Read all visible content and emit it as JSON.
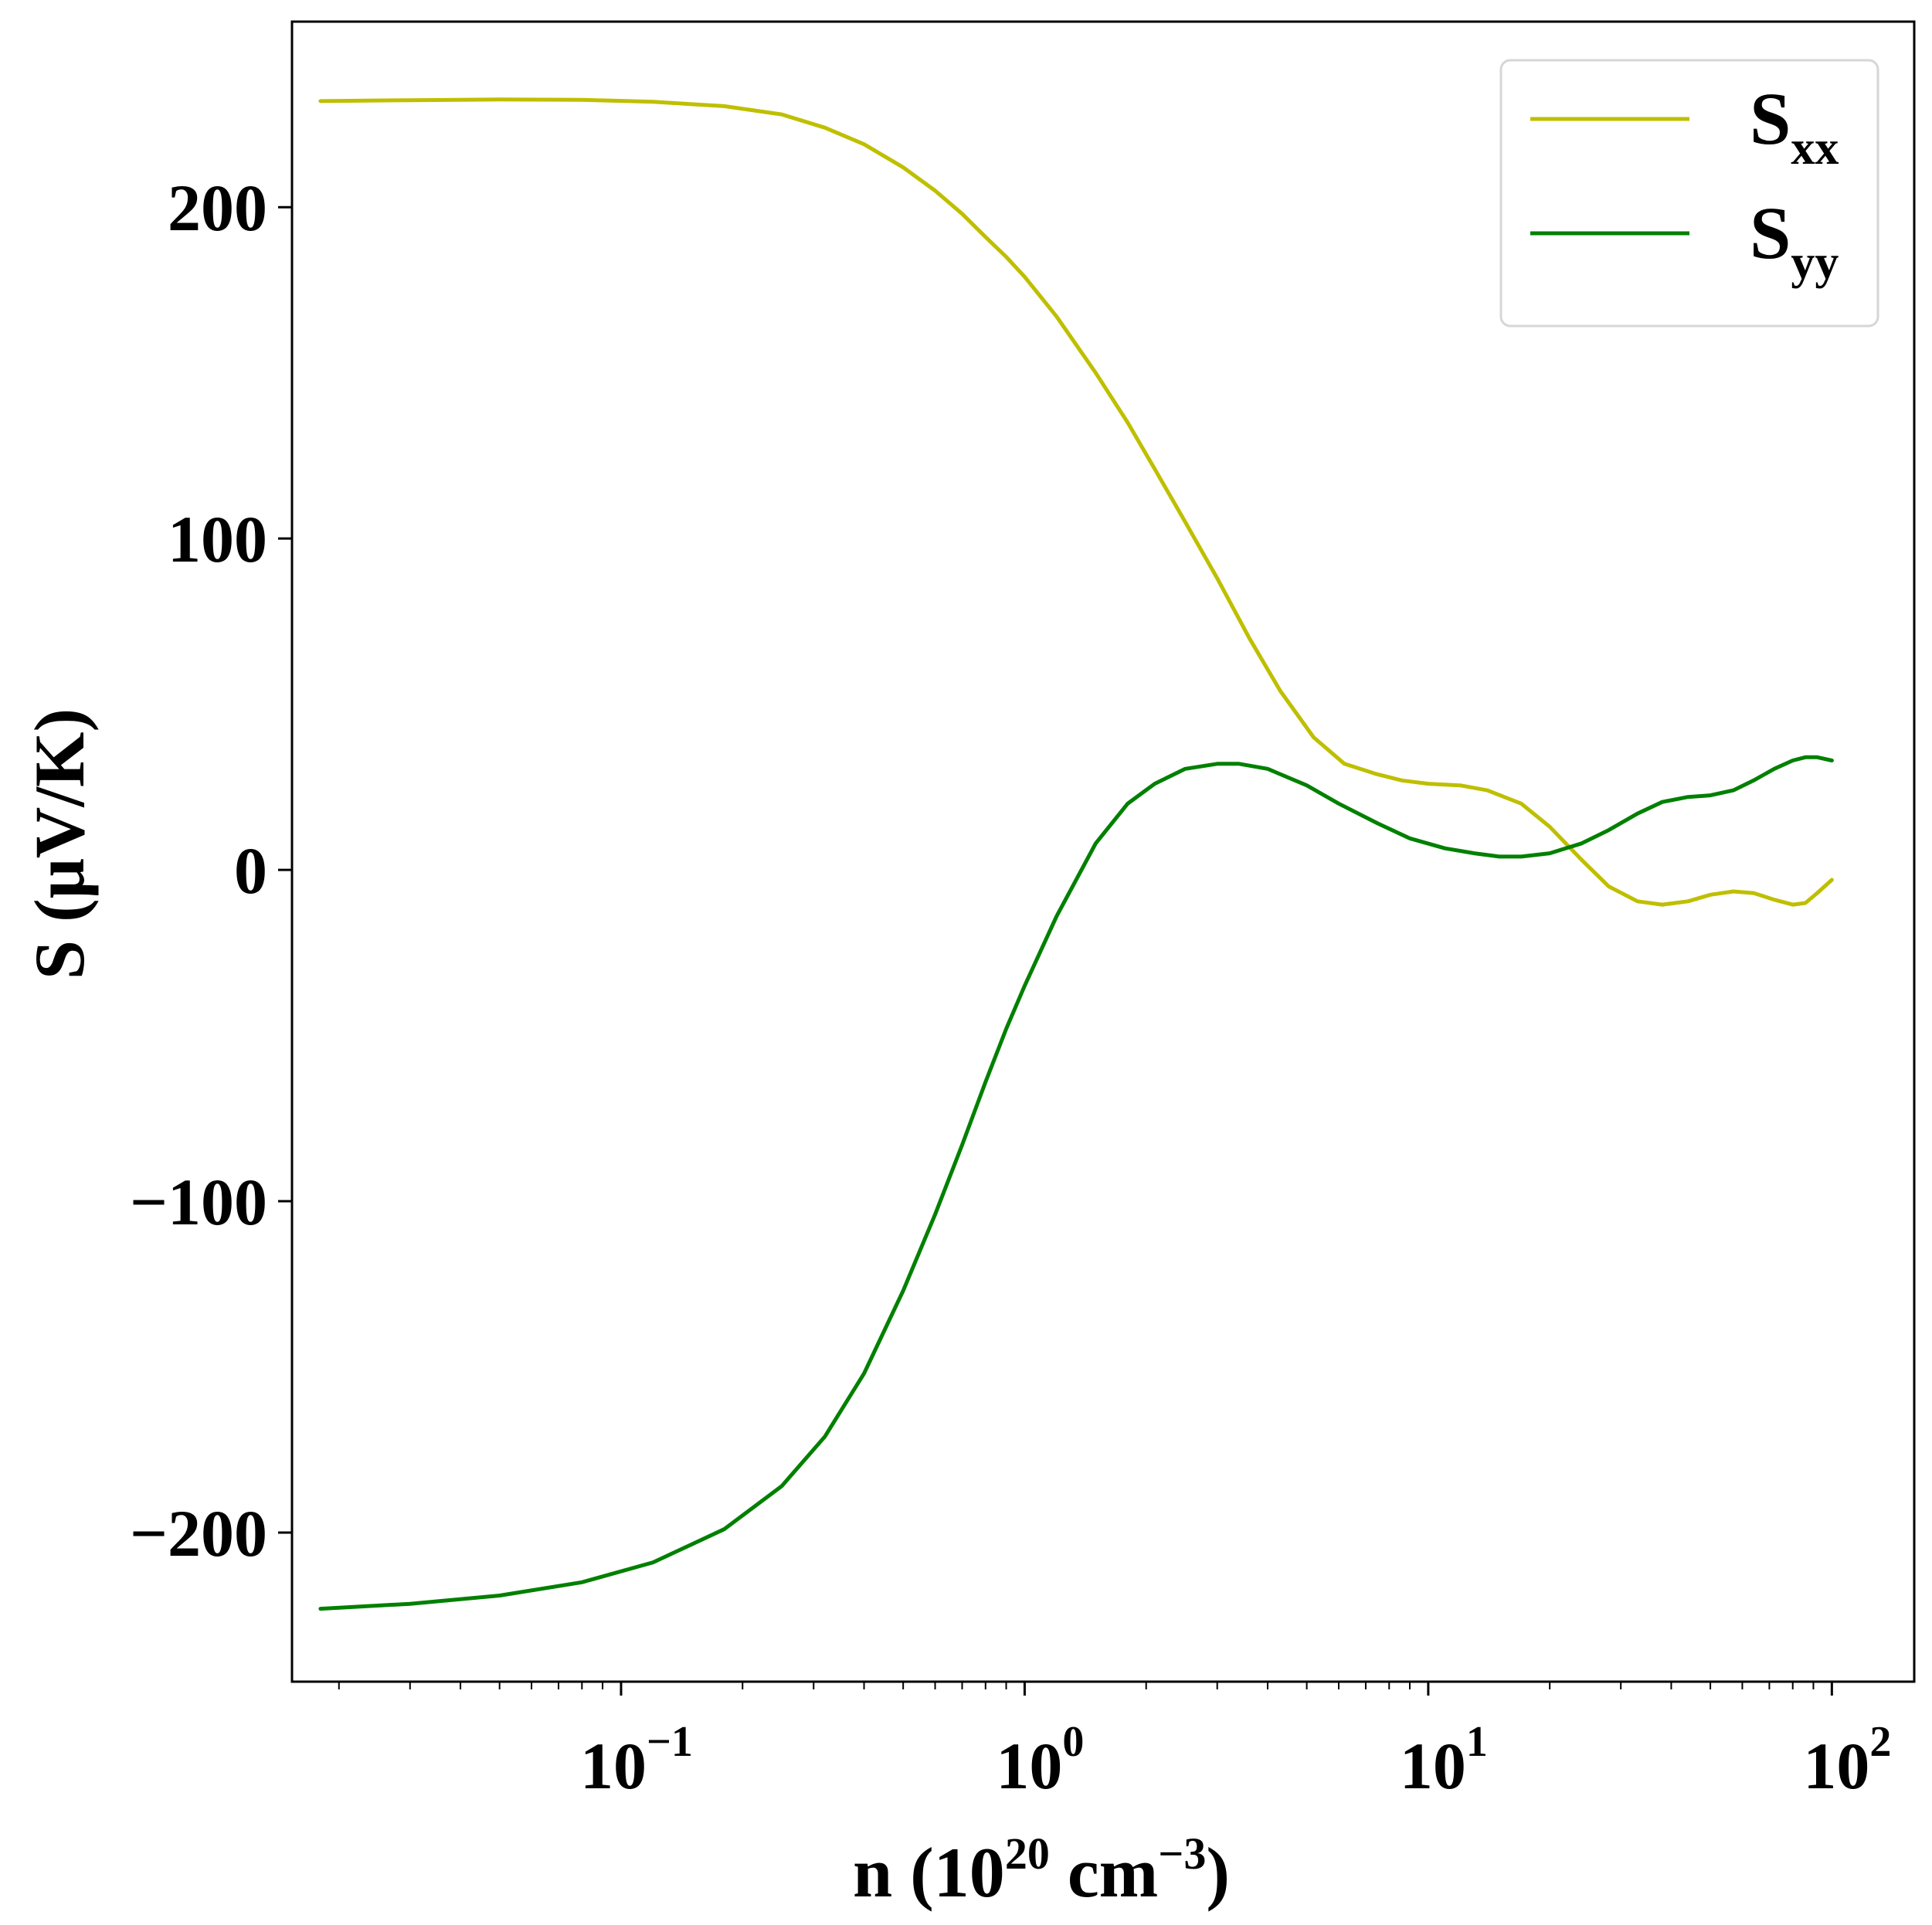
{
  "chart_data": {
    "type": "line",
    "xscale": "log",
    "xlim": [
      0.0153,
      160
    ],
    "ylim": [
      -245,
      256
    ],
    "xlabel": {
      "prefix": "n (10",
      "sup": "20",
      "mid": " cm",
      "sup2": "−3",
      "suffix": ")"
    },
    "ylabel": "S (μV/K)",
    "xticks": [
      {
        "value": 0.1,
        "base": "10",
        "exp": "−1"
      },
      {
        "value": 1,
        "base": "10",
        "exp": "0"
      },
      {
        "value": 10,
        "base": "10",
        "exp": "1"
      },
      {
        "value": 100,
        "base": "10",
        "exp": "2"
      }
    ],
    "yticks": [
      {
        "value": -200,
        "label": "−200"
      },
      {
        "value": -100,
        "label": "−100"
      },
      {
        "value": 0,
        "label": "0"
      },
      {
        "value": 100,
        "label": "100"
      },
      {
        "value": 200,
        "label": "200"
      }
    ],
    "grid": false,
    "legend_position": "top-right",
    "series": [
      {
        "name": "S",
        "sub": "xx",
        "color": "#bfbf00",
        "x": [
          0.018,
          0.03,
          0.05,
          0.08,
          0.12,
          0.18,
          0.25,
          0.32,
          0.4,
          0.5,
          0.6,
          0.7,
          0.8,
          0.9,
          1.0,
          1.2,
          1.5,
          1.8,
          2.1,
          2.5,
          3.0,
          3.6,
          4.3,
          5.2,
          6.2,
          7.4,
          8.6,
          10,
          12,
          14,
          17,
          20,
          24,
          28,
          33,
          38,
          44,
          50,
          57,
          64,
          72,
          80,
          86,
          92,
          100
        ],
        "y": [
          232,
          232.3,
          232.5,
          232.4,
          231.8,
          230.5,
          228,
          224,
          219,
          212,
          205,
          198,
          191,
          185,
          179,
          167,
          150,
          135,
          121,
          105,
          88,
          70,
          54,
          40,
          32,
          29,
          27,
          26,
          25.5,
          24,
          20,
          13,
          3,
          -5,
          -9.5,
          -10.5,
          -9.5,
          -7.5,
          -6.5,
          -7,
          -9,
          -10.5,
          -10,
          -7,
          -3
        ]
      },
      {
        "name": "S",
        "sub": "yy",
        "color": "#008000",
        "x": [
          0.018,
          0.03,
          0.05,
          0.08,
          0.12,
          0.18,
          0.25,
          0.32,
          0.4,
          0.5,
          0.6,
          0.7,
          0.8,
          0.9,
          1.0,
          1.2,
          1.5,
          1.8,
          2.1,
          2.5,
          3.0,
          3.4,
          4.0,
          5.0,
          6.0,
          7.5,
          9.0,
          11,
          13,
          15,
          17,
          20,
          24,
          28,
          33,
          38,
          44,
          50,
          57,
          64,
          72,
          80,
          86,
          92,
          100
        ],
        "y": [
          -223,
          -221.5,
          -219,
          -215,
          -209,
          -199,
          -186,
          -171,
          -152,
          -127,
          -104,
          -83,
          -64,
          -48,
          -35,
          -14,
          8,
          20,
          26,
          30.5,
          32,
          32,
          30.5,
          25.5,
          20,
          14,
          9.5,
          6.5,
          5,
          4,
          4,
          5,
          8,
          12,
          17,
          20.5,
          22,
          22.5,
          24,
          27,
          30.5,
          33,
          34,
          34,
          33
        ]
      }
    ]
  }
}
